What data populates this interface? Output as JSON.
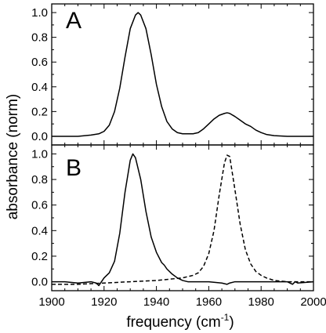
{
  "chart_data": {
    "type": "line",
    "shared_x_axis": {
      "label": "frequency (cm",
      "label_superscript": "-1",
      "label_suffix": ")",
      "range": [
        1900,
        2000
      ],
      "major_ticks": [
        1900,
        1920,
        1940,
        1960,
        1980,
        2000
      ],
      "major_tick_labels": [
        "1900",
        "1920",
        "1940",
        "1960",
        "1980",
        "2000"
      ],
      "minor_step": 5
    },
    "shared_y_label": "absorbance (norm)",
    "panels": [
      {
        "label": "A",
        "ylim": [
          -0.07,
          1.07
        ],
        "y_ticks": [
          0.0,
          0.2,
          0.4,
          0.6,
          0.8,
          1.0
        ],
        "y_tick_labels": [
          "0.0",
          "0.2",
          "0.4",
          "0.6",
          "0.8",
          "1.0"
        ],
        "series": [
          {
            "style": "solid",
            "x": [
              1900,
              1910,
              1915,
              1918,
              1920,
              1922,
              1924,
              1926,
              1928,
              1930,
              1932,
              1933,
              1934,
              1936,
              1938,
              1940,
              1942,
              1944,
              1946,
              1948,
              1950,
              1952,
              1954,
              1956,
              1958,
              1960,
              1962,
              1964,
              1966,
              1967,
              1968,
              1970,
              1972,
              1974,
              1976,
              1978,
              1980,
              1982,
              1985,
              1990,
              2000
            ],
            "y": [
              0.0,
              0.0,
              0.01,
              0.02,
              0.04,
              0.09,
              0.2,
              0.39,
              0.64,
              0.87,
              0.98,
              1.0,
              0.98,
              0.87,
              0.66,
              0.42,
              0.24,
              0.12,
              0.06,
              0.03,
              0.02,
              0.02,
              0.02,
              0.03,
              0.06,
              0.1,
              0.14,
              0.17,
              0.185,
              0.19,
              0.185,
              0.16,
              0.13,
              0.1,
              0.08,
              0.05,
              0.03,
              0.015,
              0.005,
              0.0,
              0.0
            ]
          }
        ]
      },
      {
        "label": "B",
        "ylim": [
          -0.07,
          1.07
        ],
        "y_ticks": [
          0.0,
          0.2,
          0.4,
          0.6,
          0.8,
          1.0
        ],
        "y_tick_labels": [
          "0.0",
          "0.2",
          "0.4",
          "0.6",
          "0.8",
          "1.0"
        ],
        "series": [
          {
            "style": "solid",
            "x": [
              1900,
              1905,
              1910,
              1915,
              1917,
              1918,
              1919,
              1920,
              1922,
              1924,
              1926,
              1928,
              1930,
              1931,
              1932,
              1934,
              1936,
              1938,
              1940,
              1942,
              1943,
              1944,
              1946,
              1948,
              1950,
              1952,
              1955,
              1960,
              1965,
              1967,
              1968,
              1970,
              1975,
              1980,
              1985,
              1990,
              1992,
              1993,
              1994,
              2000
            ],
            "y": [
              0.0,
              0.0,
              -0.01,
              0.0,
              -0.01,
              -0.03,
              0.0,
              0.03,
              0.07,
              0.16,
              0.38,
              0.7,
              0.95,
              1.0,
              0.97,
              0.8,
              0.55,
              0.35,
              0.23,
              0.15,
              0.13,
              0.1,
              0.06,
              0.03,
              0.01,
              0.0,
              0.0,
              0.0,
              -0.01,
              -0.02,
              -0.01,
              0.0,
              0.0,
              0.0,
              0.0,
              0.0,
              -0.02,
              0.0,
              -0.01,
              0.0
            ]
          },
          {
            "style": "dashed",
            "x": [
              1900,
              1910,
              1920,
              1930,
              1940,
              1945,
              1950,
              1954,
              1956,
              1958,
              1960,
              1962,
              1964,
              1966,
              1967,
              1968,
              1970,
              1972,
              1974,
              1976,
              1978,
              1980,
              1982,
              1985,
              1990,
              2000
            ],
            "y": [
              -0.02,
              -0.02,
              -0.01,
              0.0,
              0.01,
              0.02,
              0.03,
              0.05,
              0.07,
              0.12,
              0.22,
              0.4,
              0.68,
              0.93,
              0.99,
              0.98,
              0.72,
              0.45,
              0.25,
              0.14,
              0.08,
              0.05,
              0.03,
              0.01,
              0.0,
              0.0
            ]
          }
        ]
      }
    ]
  }
}
